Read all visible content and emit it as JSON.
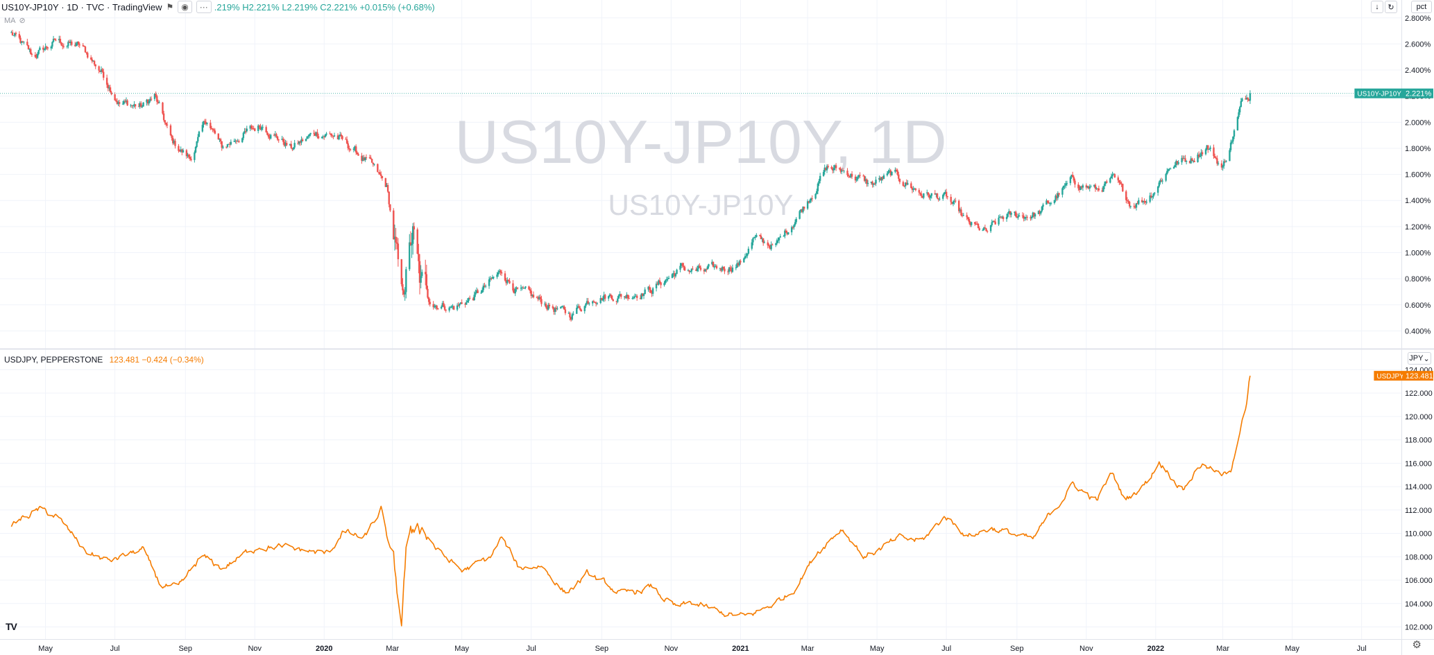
{
  "header": {
    "symbol": "US10Y-JP10Y",
    "interval": "1D",
    "exchange": "TVC",
    "source": "TradingView",
    "ohlc": ".219% H2.221% L2.219% C2.221% +0.015% (+0.68%)"
  },
  "indicator": {
    "label": "MA"
  },
  "watermark": {
    "title": "US10Y-JP10Y, 1D",
    "subtitle": "US10Y-JP10Y"
  },
  "top_right": {
    "scale_label": "pct"
  },
  "sub_pane": {
    "label": "USDJPY, PEPPERSTONE",
    "values": "123.481 −0.424 (−0.34%)",
    "currency": "JPY"
  },
  "badges": {
    "spread_name": "US10Y-JP10Y",
    "spread_value": "2.221%",
    "usdjpy_name": "USDJPY",
    "usdjpy_value": "123.481"
  },
  "logo": "TV",
  "colors": {
    "up": "#26a69a",
    "down": "#ef5350",
    "line": "#f57c00",
    "spread_badge": "#26a69a",
    "usdjpy_badge": "#f57c00"
  },
  "icons": [
    "eye-icon",
    "more-icon",
    "eye-off-icon",
    "arrow-down-icon",
    "refresh-icon",
    "settings-icon"
  ],
  "chart_data": [
    {
      "type": "candlestick",
      "series_name": "US10Y-JP10Y",
      "x_start": "2019-04",
      "x_end": "2022-03-25",
      "y_axis_ticks": [
        "0.400%",
        "0.600%",
        "0.800%",
        "1.000%",
        "1.200%",
        "1.400%",
        "1.600%",
        "1.800%",
        "2.000%",
        "2.200%",
        "2.400%",
        "2.600%",
        "2.800%"
      ],
      "ylim": [
        0.28,
        2.82
      ],
      "last_value": 2.221,
      "close_anchors": [
        [
          "2019-04-01",
          2.68
        ],
        [
          "2019-04-20",
          2.5
        ],
        [
          "2019-05-10",
          2.62
        ],
        [
          "2019-06-01",
          2.58
        ],
        [
          "2019-06-20",
          2.38
        ],
        [
          "2019-07-05",
          2.15
        ],
        [
          "2019-07-25",
          2.12
        ],
        [
          "2019-08-05",
          2.2
        ],
        [
          "2019-08-20",
          1.85
        ],
        [
          "2019-09-05",
          1.72
        ],
        [
          "2019-09-20",
          2.02
        ],
        [
          "2019-10-03",
          1.8
        ],
        [
          "2019-10-20",
          1.9
        ],
        [
          "2019-11-08",
          1.98
        ],
        [
          "2019-12-03",
          1.8
        ],
        [
          "2019-12-25",
          1.92
        ],
        [
          "2020-01-10",
          1.9
        ],
        [
          "2020-01-25",
          1.8
        ],
        [
          "2020-02-10",
          1.68
        ],
        [
          "2020-02-25",
          1.5
        ],
        [
          "2020-03-03",
          1.08
        ],
        [
          "2020-03-09",
          0.6
        ],
        [
          "2020-03-13",
          0.85
        ],
        [
          "2020-03-19",
          1.15
        ],
        [
          "2020-03-25",
          0.75
        ],
        [
          "2020-04-05",
          0.62
        ],
        [
          "2020-04-25",
          0.58
        ],
        [
          "2020-05-15",
          0.68
        ],
        [
          "2020-06-05",
          0.85
        ],
        [
          "2020-06-20",
          0.7
        ],
        [
          "2020-07-10",
          0.62
        ],
        [
          "2020-08-04",
          0.52
        ],
        [
          "2020-08-25",
          0.67
        ],
        [
          "2020-09-20",
          0.67
        ],
        [
          "2020-10-15",
          0.72
        ],
        [
          "2020-11-10",
          0.88
        ],
        [
          "2020-12-01",
          0.85
        ],
        [
          "2021-01-01",
          0.92
        ],
        [
          "2021-01-12",
          1.1
        ],
        [
          "2021-02-01",
          1.05
        ],
        [
          "2021-02-25",
          1.35
        ],
        [
          "2021-03-18",
          1.65
        ],
        [
          "2021-04-05",
          1.62
        ],
        [
          "2021-04-25",
          1.52
        ],
        [
          "2021-05-15",
          1.6
        ],
        [
          "2021-06-10",
          1.45
        ],
        [
          "2021-07-01",
          1.42
        ],
        [
          "2021-07-20",
          1.22
        ],
        [
          "2021-08-05",
          1.15
        ],
        [
          "2021-08-20",
          1.27
        ],
        [
          "2021-09-20",
          1.3
        ],
        [
          "2021-10-20",
          1.55
        ],
        [
          "2021-11-10",
          1.48
        ],
        [
          "2021-11-25",
          1.55
        ],
        [
          "2021-12-10",
          1.38
        ],
        [
          "2021-12-25",
          1.42
        ],
        [
          "2022-01-15",
          1.68
        ],
        [
          "2022-02-01",
          1.72
        ],
        [
          "2022-02-15",
          1.82
        ],
        [
          "2022-03-01",
          1.65
        ],
        [
          "2022-03-10",
          1.9
        ],
        [
          "2022-03-18",
          2.15
        ],
        [
          "2022-03-25",
          2.221
        ]
      ]
    },
    {
      "type": "line",
      "series_name": "USDJPY, PEPPERSTONE",
      "x_start": "2019-04",
      "x_end": "2022-03-25",
      "y_axis_ticks": [
        "102.000",
        "104.000",
        "106.000",
        "108.000",
        "110.000",
        "112.000",
        "114.000",
        "116.000",
        "118.000",
        "120.000",
        "122.000",
        "124.000"
      ],
      "ylim": [
        101.2,
        124.2
      ],
      "last_value": 123.481,
      "value_anchors": [
        [
          "2019-04-01",
          110.8
        ],
        [
          "2019-04-25",
          112.0
        ],
        [
          "2019-05-10",
          111.5
        ],
        [
          "2019-06-05",
          108.5
        ],
        [
          "2019-06-25",
          107.6
        ],
        [
          "2019-07-25",
          108.6
        ],
        [
          "2019-08-10",
          105.6
        ],
        [
          "2019-08-26",
          105.2
        ],
        [
          "2019-09-15",
          108.0
        ],
        [
          "2019-10-03",
          107.0
        ],
        [
          "2019-11-05",
          109.0
        ],
        [
          "2019-12-10",
          108.6
        ],
        [
          "2020-01-05",
          108.2
        ],
        [
          "2020-01-17",
          110.2
        ],
        [
          "2020-02-05",
          109.5
        ],
        [
          "2020-02-20",
          112.0
        ],
        [
          "2020-03-02",
          107.0
        ],
        [
          "2020-03-09",
          102.4
        ],
        [
          "2020-03-13",
          108.5
        ],
        [
          "2020-03-24",
          111.0
        ],
        [
          "2020-04-10",
          108.5
        ],
        [
          "2020-05-01",
          106.8
        ],
        [
          "2020-05-25",
          107.8
        ],
        [
          "2020-06-05",
          109.6
        ],
        [
          "2020-06-20",
          107.0
        ],
        [
          "2020-07-10",
          107.3
        ],
        [
          "2020-07-31",
          104.9
        ],
        [
          "2020-08-20",
          106.5
        ],
        [
          "2020-09-20",
          104.7
        ],
        [
          "2020-10-15",
          105.4
        ],
        [
          "2020-11-05",
          103.6
        ],
        [
          "2020-11-20",
          104.0
        ],
        [
          "2020-12-15",
          103.2
        ],
        [
          "2021-01-05",
          102.8
        ],
        [
          "2021-01-25",
          103.7
        ],
        [
          "2021-02-15",
          105.0
        ],
        [
          "2021-03-10",
          108.5
        ],
        [
          "2021-03-31",
          110.5
        ],
        [
          "2021-04-20",
          108.0
        ],
        [
          "2021-05-20",
          109.5
        ],
        [
          "2021-06-10",
          109.4
        ],
        [
          "2021-06-30",
          111.5
        ],
        [
          "2021-07-20",
          109.8
        ],
        [
          "2021-08-10",
          110.5
        ],
        [
          "2021-09-15",
          109.4
        ],
        [
          "2021-09-30",
          111.6
        ],
        [
          "2021-10-20",
          114.2
        ],
        [
          "2021-11-10",
          112.8
        ],
        [
          "2021-11-24",
          115.2
        ],
        [
          "2021-12-05",
          112.8
        ],
        [
          "2021-12-25",
          114.5
        ],
        [
          "2022-01-04",
          116.2
        ],
        [
          "2022-01-25",
          113.8
        ],
        [
          "2022-02-10",
          116.0
        ],
        [
          "2022-03-01",
          114.8
        ],
        [
          "2022-03-08",
          115.5
        ],
        [
          "2022-03-15",
          118.5
        ],
        [
          "2022-03-22",
          121.0
        ],
        [
          "2022-03-25",
          123.481
        ]
      ]
    }
  ],
  "time_axis": {
    "labels": [
      [
        "2019-05-01",
        "May"
      ],
      [
        "2019-07-01",
        "Jul"
      ],
      [
        "2019-09-01",
        "Sep"
      ],
      [
        "2019-11-01",
        "Nov"
      ],
      [
        "2020-01-01",
        "2020"
      ],
      [
        "2020-03-01",
        "Mar"
      ],
      [
        "2020-05-01",
        "May"
      ],
      [
        "2020-07-01",
        "Jul"
      ],
      [
        "2020-09-01",
        "Sep"
      ],
      [
        "2020-11-01",
        "Nov"
      ],
      [
        "2021-01-01",
        "2021"
      ],
      [
        "2021-03-01",
        "Mar"
      ],
      [
        "2021-05-01",
        "May"
      ],
      [
        "2021-07-01",
        "Jul"
      ],
      [
        "2021-09-01",
        "Sep"
      ],
      [
        "2021-11-01",
        "Nov"
      ],
      [
        "2022-01-01",
        "2022"
      ],
      [
        "2022-03-01",
        "Mar"
      ],
      [
        "2022-05-01",
        "May"
      ],
      [
        "2022-07-01",
        "Jul"
      ]
    ]
  }
}
